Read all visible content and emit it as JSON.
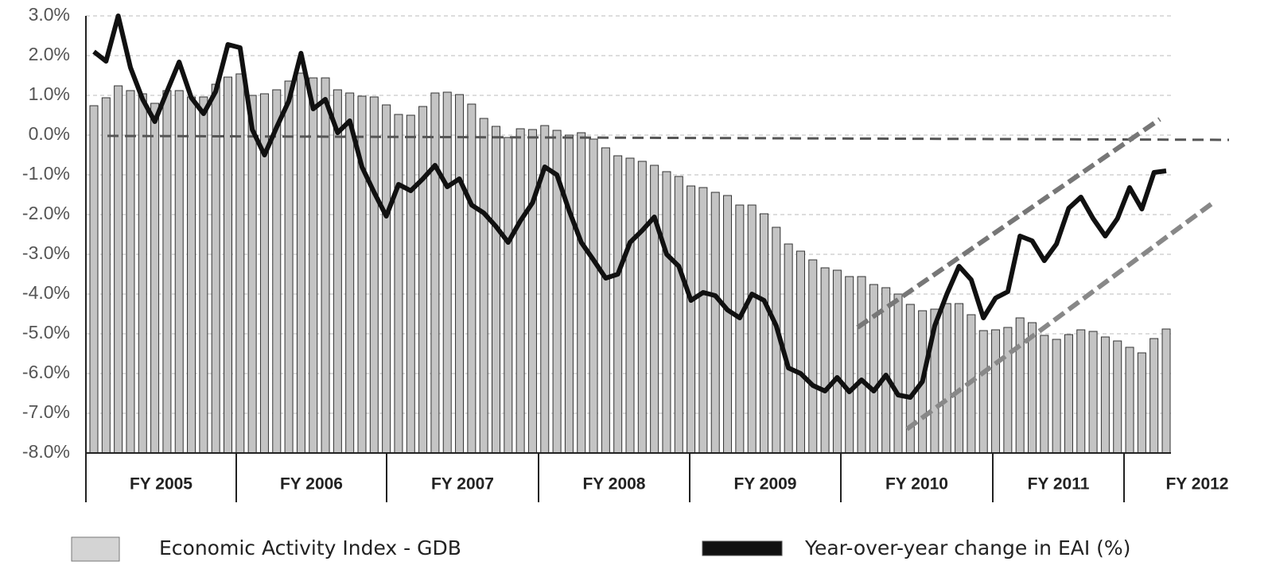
{
  "chart_data": {
    "type": "combo",
    "ylim": [
      -8,
      3
    ],
    "yticks": [
      {
        "value": -8,
        "label": "-8.0%"
      },
      {
        "value": -7,
        "label": "-7.0%"
      },
      {
        "value": -6,
        "label": "-6.0%"
      },
      {
        "value": -5,
        "label": "-5.0%"
      },
      {
        "value": -4,
        "label": "-4.0%"
      },
      {
        "value": -3,
        "label": "-3.0%"
      },
      {
        "value": -2,
        "label": "-2.0%"
      },
      {
        "value": -1,
        "label": "-1.0%"
      },
      {
        "value": 0,
        "label": "0.0%"
      },
      {
        "value": 1,
        "label": "1.0%"
      },
      {
        "value": 2,
        "label": "2.0%"
      },
      {
        "value": 3,
        "label": "3.0%"
      }
    ],
    "grid": true,
    "fiscal_years": [
      "FY 2005",
      "FY 2006",
      "FY 2007",
      "FY 2008",
      "FY 2009",
      "FY 2010",
      "FY 2011",
      "FY 2012"
    ],
    "series": [
      {
        "name": "Economic Activity Index - GDB",
        "type": "bar",
        "color": "#c4c4c4",
        "values": [
          0.74,
          0.94,
          1.24,
          1.12,
          1.04,
          0.8,
          1.12,
          1.12,
          0.96,
          0.96,
          1.28,
          1.46,
          1.54,
          1.0,
          1.04,
          1.14,
          1.36,
          1.56,
          1.44,
          1.44,
          1.14,
          1.06,
          0.98,
          0.96,
          0.76,
          0.52,
          0.5,
          0.72,
          1.06,
          1.08,
          1.02,
          0.78,
          0.42,
          0.22,
          -0.06,
          0.16,
          0.14,
          0.24,
          0.12,
          0.0,
          0.06,
          -0.1,
          -0.32,
          -0.52,
          -0.58,
          -0.66,
          -0.76,
          -0.92,
          -1.04,
          -1.28,
          -1.32,
          -1.44,
          -1.52,
          -1.76,
          -1.76,
          -1.98,
          -2.32,
          -2.74,
          -2.92,
          -3.14,
          -3.34,
          -3.4,
          -3.56,
          -3.56,
          -3.76,
          -3.84,
          -4.0,
          -4.26,
          -4.42,
          -4.38,
          -4.24,
          -4.24,
          -4.52,
          -4.92,
          -4.9,
          -4.84,
          -4.6,
          -4.72,
          -5.04,
          -5.14,
          -5.02,
          -4.9,
          -4.94,
          -5.08,
          -5.18,
          -5.34,
          -5.48,
          -5.12,
          -4.88
        ]
      },
      {
        "name": "Year-over-year change in EAI (%)",
        "type": "line",
        "color": "#111111",
        "values": [
          2.1,
          1.86,
          3.0,
          1.7,
          0.9,
          0.34,
          1.1,
          1.84,
          0.94,
          0.54,
          1.1,
          2.28,
          2.2,
          0.14,
          -0.5,
          0.2,
          0.86,
          2.06,
          0.66,
          0.9,
          0.06,
          0.36,
          -0.8,
          -1.44,
          -2.04,
          -1.24,
          -1.4,
          -1.1,
          -0.76,
          -1.3,
          -1.1,
          -1.76,
          -1.96,
          -2.3,
          -2.7,
          -2.16,
          -1.7,
          -0.8,
          -1.0,
          -1.9,
          -2.7,
          -3.14,
          -3.6,
          -3.5,
          -2.7,
          -2.4,
          -2.06,
          -3.0,
          -3.3,
          -4.16,
          -3.96,
          -4.04,
          -4.4,
          -4.6,
          -4.0,
          -4.16,
          -4.8,
          -5.86,
          -6.0,
          -6.3,
          -6.44,
          -6.1,
          -6.46,
          -6.16,
          -6.44,
          -6.04,
          -6.54,
          -6.6,
          -6.2,
          -4.8,
          -4.0,
          -3.3,
          -3.64,
          -4.6,
          -4.1,
          -3.94,
          -2.54,
          -2.66,
          -3.16,
          -2.74,
          -1.84,
          -1.56,
          -2.1,
          -2.54,
          -2.1,
          -1.32,
          -1.86,
          -0.94,
          -0.9
        ]
      }
    ]
  }
}
